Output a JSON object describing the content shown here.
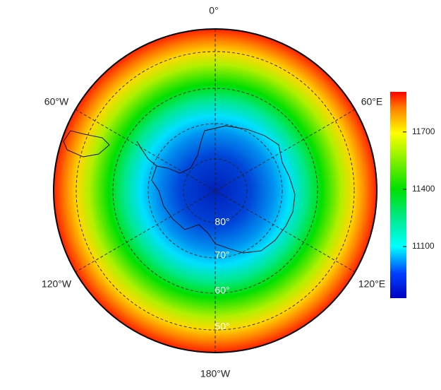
{
  "map": {
    "longitude_labels": [
      "0°",
      "60°E",
      "120°E",
      "180°W",
      "120°W",
      "60°W"
    ],
    "latitude_labels": [
      "80°",
      "70°",
      "60°",
      "50°"
    ],
    "colorbar": {
      "range": [
        10830,
        11910
      ],
      "ticks": [
        11100,
        11400,
        11700
      ]
    }
  }
}
